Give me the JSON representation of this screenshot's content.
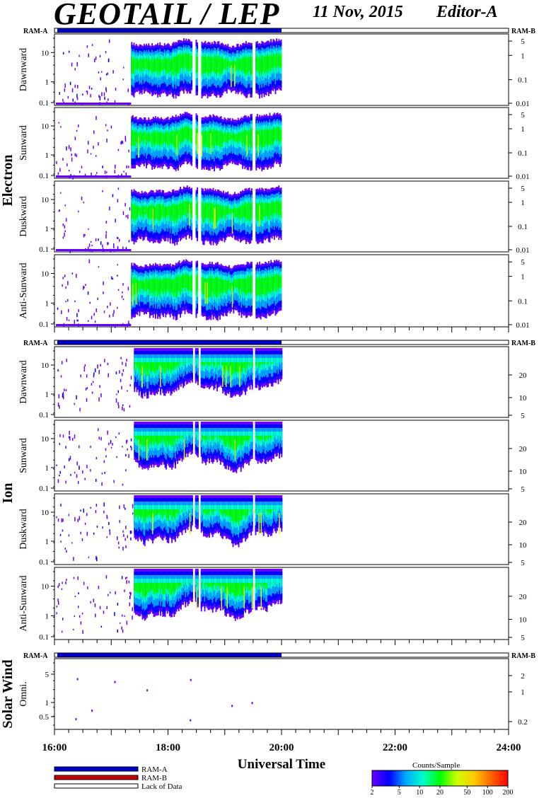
{
  "header": {
    "title": "GEOTAIL / LEP",
    "date": "11 Nov, 2015",
    "editor": "Editor-A"
  },
  "ram_labels": {
    "left": "RAM-A",
    "right": "RAM-B"
  },
  "legend": {
    "items": [
      {
        "label": "RAM-A",
        "color": "#0000cc"
      },
      {
        "label": "RAM-B",
        "color": "#cc0000"
      },
      {
        "label": "Lack of Data",
        "color": "#ffffff"
      }
    ]
  },
  "colorbar": {
    "title": "Counts/Sample",
    "ticks": [
      "2",
      "5",
      "10",
      "20",
      "50",
      "100",
      "200"
    ],
    "colors": [
      "#6a00ff",
      "#0000ff",
      "#00aaff",
      "#00ffcc",
      "#00ff00",
      "#ccff00",
      "#ffcc00",
      "#ff6600",
      "#ff0000"
    ]
  },
  "chart_data": {
    "type": "heatmap",
    "xlabel": "Universal Time",
    "x_ticks": [
      "16:00",
      "18:00",
      "20:00",
      "22:00",
      "24:00"
    ],
    "x_range_hours": [
      16,
      24
    ],
    "ram_a_coverage_hours": [
      16.0,
      20.0
    ],
    "groups": [
      {
        "name": "Electron",
        "left_ticks": [
          "10",
          "1",
          "0.1"
        ],
        "right_ticks": [
          "5",
          "1",
          "0.1",
          "0.01"
        ],
        "panels": [
          {
            "label": "Dawnward",
            "onset_hour": 17.35,
            "end_hour": 20.0,
            "gaps": [
              18.45,
              18.55,
              19.5
            ]
          },
          {
            "label": "Sunward",
            "onset_hour": 17.35,
            "end_hour": 20.0,
            "gaps": [
              18.45,
              18.55,
              19.5
            ]
          },
          {
            "label": "Duskward",
            "onset_hour": 17.35,
            "end_hour": 20.0,
            "gaps": [
              18.45,
              18.55,
              19.5
            ]
          },
          {
            "label": "Anti-Sunward",
            "onset_hour": 17.35,
            "end_hour": 20.0,
            "gaps": [
              18.45,
              18.55,
              19.5
            ]
          }
        ]
      },
      {
        "name": "Ion",
        "left_ticks": [
          "10",
          "1",
          "0.1"
        ],
        "right_ticks": [
          "20",
          "10",
          "5"
        ],
        "panels": [
          {
            "label": "Dawnward",
            "onset_hour": 17.4,
            "end_hour": 20.0,
            "gaps": [
              18.45,
              18.55,
              19.5
            ]
          },
          {
            "label": "Sunward",
            "onset_hour": 17.4,
            "end_hour": 20.0,
            "gaps": [
              18.45,
              18.55,
              19.5
            ]
          },
          {
            "label": "Duskward",
            "onset_hour": 17.4,
            "end_hour": 20.0,
            "gaps": [
              18.45,
              18.55,
              19.5
            ]
          },
          {
            "label": "Anti-Sunward",
            "onset_hour": 17.4,
            "end_hour": 20.0,
            "gaps": [
              18.45,
              18.55,
              19.5
            ]
          }
        ]
      },
      {
        "name": "Solar Wind",
        "left_ticks": [
          "5",
          "1",
          "0.5"
        ],
        "right_ticks": [
          "2",
          "1",
          "0.2"
        ],
        "panels": [
          {
            "label": "Omni.",
            "onset_hour": null,
            "end_hour": null,
            "gaps": []
          }
        ]
      }
    ]
  }
}
